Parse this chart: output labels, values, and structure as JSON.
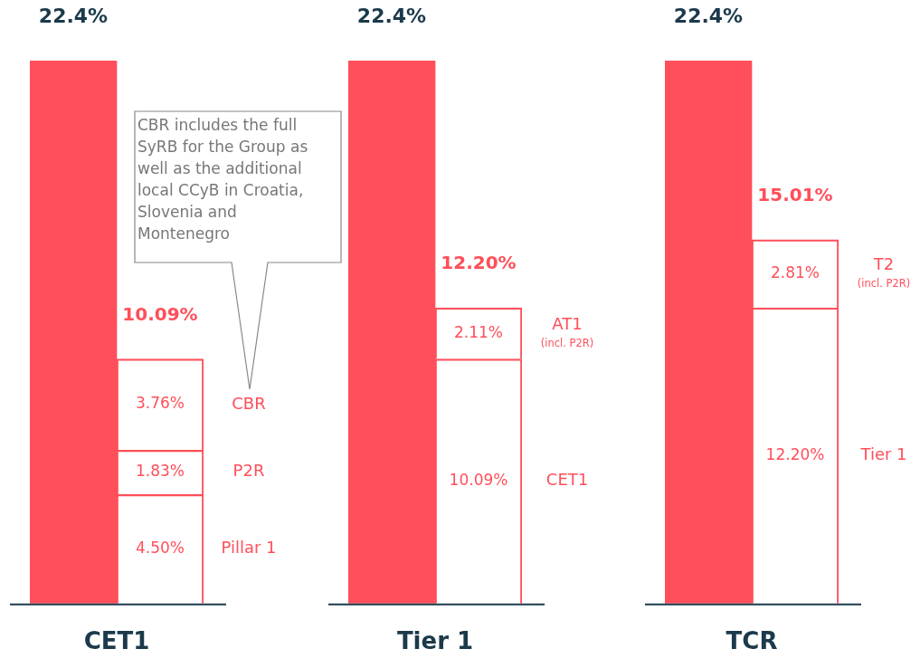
{
  "chart_data": [
    {
      "type": "bar",
      "stacked": true,
      "xlabel": "CET1",
      "categories": [
        null,
        null
      ],
      "legend": false,
      "series": [
        {
          "color": "#ff4f5a",
          "values": [
            22.4,
            null
          ],
          "value_labels": [
            "22.4%",
            null
          ]
        },
        {
          "name": "Pillar 1",
          "color": "#ff4f5a",
          "values": [
            null,
            4.5
          ],
          "value_labels": [
            null,
            "4.50%"
          ]
        },
        {
          "name": "P2R",
          "color": "#ff4f5a",
          "values": [
            null,
            1.83
          ],
          "value_labels": [
            null,
            "1.83%"
          ]
        },
        {
          "name": "CBR",
          "color": "#ff4f5a",
          "values": [
            null,
            3.76
          ],
          "value_labels": [
            null,
            "3.76%"
          ]
        }
      ],
      "totals": [
        null,
        "10.09%"
      ],
      "annotations": [
        "CBR includes the full SyRB for the Group as well as the additional local CCyB in Croatia, Slovenia and Montenegro"
      ]
    },
    {
      "type": "bar",
      "stacked": true,
      "xlabel": "Tier 1",
      "categories": [
        null,
        null
      ],
      "legend": false,
      "series": [
        {
          "color": "#ff4f5a",
          "values": [
            22.4,
            null
          ],
          "value_labels": [
            "22.4%",
            null
          ]
        },
        {
          "name": "CET1",
          "color": "#ff4f5a",
          "values": [
            null,
            10.09
          ],
          "value_labels": [
            null,
            "10.09%"
          ]
        },
        {
          "name": "AT1 (incl. P2R)",
          "color": "#ff4f5a",
          "values": [
            null,
            2.11
          ],
          "value_labels": [
            null,
            "2.11%"
          ]
        }
      ],
      "totals": [
        null,
        "12.20%"
      ]
    },
    {
      "type": "bar",
      "stacked": true,
      "xlabel": "TCR",
      "categories": [
        null,
        null
      ],
      "legend": false,
      "series": [
        {
          "color": "#ff4f5a",
          "values": [
            22.4,
            null
          ],
          "value_labels": [
            "22.4%",
            null
          ]
        },
        {
          "name": "Tier 1",
          "color": "#ff4f5a",
          "values": [
            null,
            12.2
          ],
          "value_labels": [
            null,
            "12.20%"
          ]
        },
        {
          "name": "T2 (incl. P2R)",
          "color": "#ff4f5a",
          "values": [
            null,
            2.81
          ],
          "value_labels": [
            null,
            "2.81%"
          ]
        }
      ],
      "totals": [
        null,
        "15.01%"
      ]
    }
  ]
}
